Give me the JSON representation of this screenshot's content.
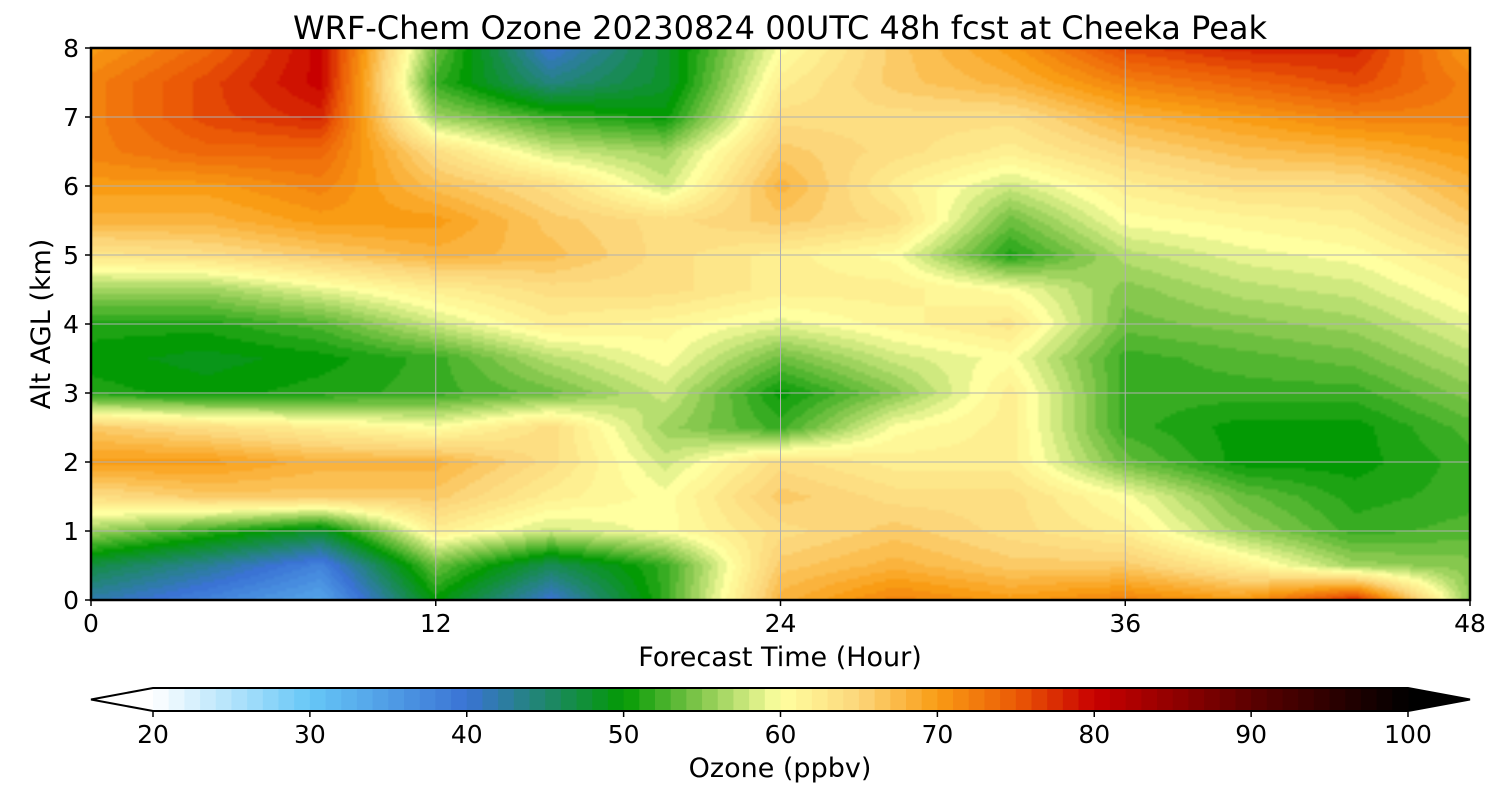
{
  "chart_data": {
    "type": "heatmap",
    "title": "WRF-Chem Ozone  20230824 00UTC 48h fcst at Cheeka Peak",
    "xlabel": "Forecast Time (Hour)",
    "ylabel": "Alt AGL (km)",
    "xlim": [
      0,
      48
    ],
    "ylim": [
      0,
      8
    ],
    "x_ticks": [
      0,
      12,
      24,
      36,
      48
    ],
    "y_ticks": [
      0,
      1,
      2,
      3,
      4,
      5,
      6,
      7,
      8
    ],
    "grid": true,
    "x": [
      0,
      4,
      8,
      12,
      16,
      20,
      24,
      28,
      32,
      36,
      40,
      44,
      48
    ],
    "y": [
      0,
      0.5,
      1,
      1.5,
      2,
      2.5,
      3,
      3.5,
      4,
      4.5,
      5,
      5.5,
      6,
      6.5,
      7,
      7.5,
      8
    ],
    "z": [
      [
        42,
        38,
        34,
        50,
        40,
        52,
        68,
        72,
        70,
        72,
        70,
        78,
        55
      ],
      [
        47,
        43,
        38,
        54,
        46,
        52,
        66,
        68,
        66,
        66,
        62,
        56,
        55
      ],
      [
        56,
        52,
        48,
        62,
        58,
        60,
        64,
        66,
        64,
        62,
        56,
        52,
        53
      ],
      [
        64,
        66,
        66,
        66,
        62,
        60,
        66,
        64,
        64,
        60,
        54,
        51,
        52
      ],
      [
        70,
        70,
        68,
        68,
        64,
        58,
        64,
        62,
        62,
        54,
        50,
        50,
        52
      ],
      [
        66,
        64,
        62,
        60,
        64,
        56,
        52,
        60,
        62,
        52,
        50,
        50,
        53
      ],
      [
        51,
        50,
        51,
        52,
        54,
        58,
        50,
        55,
        62,
        52,
        52,
        52,
        55
      ],
      [
        50,
        49,
        50,
        52,
        57,
        60,
        54,
        58,
        60,
        52,
        53,
        54,
        57
      ],
      [
        51,
        51,
        53,
        58,
        62,
        61,
        59,
        61,
        63,
        54,
        55,
        56,
        59
      ],
      [
        56,
        56,
        59,
        62,
        64,
        64,
        62,
        62,
        60,
        55,
        57,
        58,
        61
      ],
      [
        63,
        64,
        66,
        68,
        67,
        64,
        62,
        60,
        51,
        57,
        59,
        60,
        63
      ],
      [
        68,
        68,
        70,
        70,
        66,
        64,
        66,
        64,
        54,
        60,
        61,
        62,
        66
      ],
      [
        70,
        70,
        72,
        67,
        64,
        58,
        68,
        62,
        58,
        62,
        64,
        64,
        68
      ],
      [
        72,
        74,
        74,
        64,
        58,
        56,
        66,
        64,
        62,
        65,
        67,
        68,
        70
      ],
      [
        72,
        76,
        78,
        56,
        52,
        50,
        64,
        64,
        64,
        68,
        70,
        72,
        72
      ],
      [
        72,
        76,
        80,
        52,
        44,
        48,
        62,
        66,
        68,
        72,
        74,
        76,
        72
      ],
      [
        70,
        74,
        80,
        54,
        40,
        48,
        60,
        66,
        70,
        76,
        78,
        78,
        70
      ]
    ],
    "colorbar": {
      "label": "Ozone  (ppbv)",
      "min": 20,
      "max": 100,
      "ticks": [
        20,
        30,
        40,
        50,
        60,
        70,
        80,
        90,
        100
      ],
      "extend": "both",
      "stops": [
        {
          "v": 20,
          "c": "#ffffff"
        },
        {
          "v": 30,
          "c": "#66c7f7"
        },
        {
          "v": 40,
          "c": "#3a73d4"
        },
        {
          "v": 50,
          "c": "#039a04"
        },
        {
          "v": 55,
          "c": "#86c84e"
        },
        {
          "v": 60,
          "c": "#ffffa0"
        },
        {
          "v": 65,
          "c": "#fcd67a"
        },
        {
          "v": 70,
          "c": "#f99c14"
        },
        {
          "v": 75,
          "c": "#eb5a06"
        },
        {
          "v": 80,
          "c": "#c80000"
        },
        {
          "v": 90,
          "c": "#5c0000"
        },
        {
          "v": 100,
          "c": "#000000"
        }
      ]
    }
  }
}
